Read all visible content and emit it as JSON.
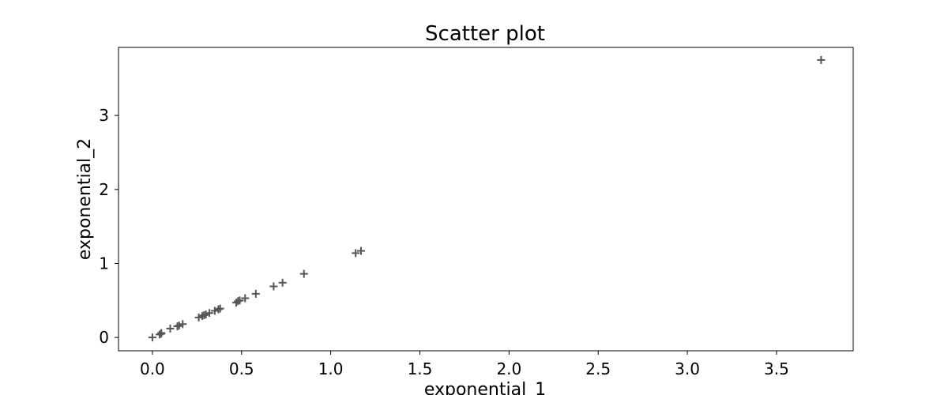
{
  "chart_data": {
    "type": "scatter",
    "title": "Scatter plot",
    "xlabel": "exponential_1",
    "ylabel": "exponential_2",
    "xlim": [
      -0.19,
      3.93
    ],
    "ylim": [
      -0.18,
      3.92
    ],
    "x_ticks": [
      0.0,
      0.5,
      1.0,
      1.5,
      2.0,
      2.5,
      3.0,
      3.5
    ],
    "x_tick_labels": [
      "0.0",
      "0.5",
      "1.0",
      "1.5",
      "2.0",
      "2.5",
      "3.0",
      "3.5"
    ],
    "y_ticks": [
      0,
      1,
      2,
      3
    ],
    "y_tick_labels": [
      "0",
      "1",
      "2",
      "3"
    ],
    "grid": false,
    "marker": "+",
    "marker_color": "#555555",
    "series": [
      {
        "x": [
          0.0,
          0.04,
          0.05,
          0.05,
          0.1,
          0.14,
          0.15,
          0.17,
          0.26,
          0.28,
          0.29,
          0.3,
          0.32,
          0.35,
          0.37,
          0.38,
          0.47,
          0.48,
          0.49,
          0.52,
          0.58,
          0.68,
          0.73,
          0.85,
          1.14,
          1.17,
          3.75
        ],
        "y": [
          0.0,
          0.04,
          0.05,
          0.06,
          0.12,
          0.15,
          0.16,
          0.18,
          0.27,
          0.29,
          0.3,
          0.31,
          0.33,
          0.36,
          0.38,
          0.39,
          0.47,
          0.49,
          0.5,
          0.53,
          0.59,
          0.69,
          0.74,
          0.86,
          1.14,
          1.17,
          3.75
        ]
      }
    ]
  }
}
